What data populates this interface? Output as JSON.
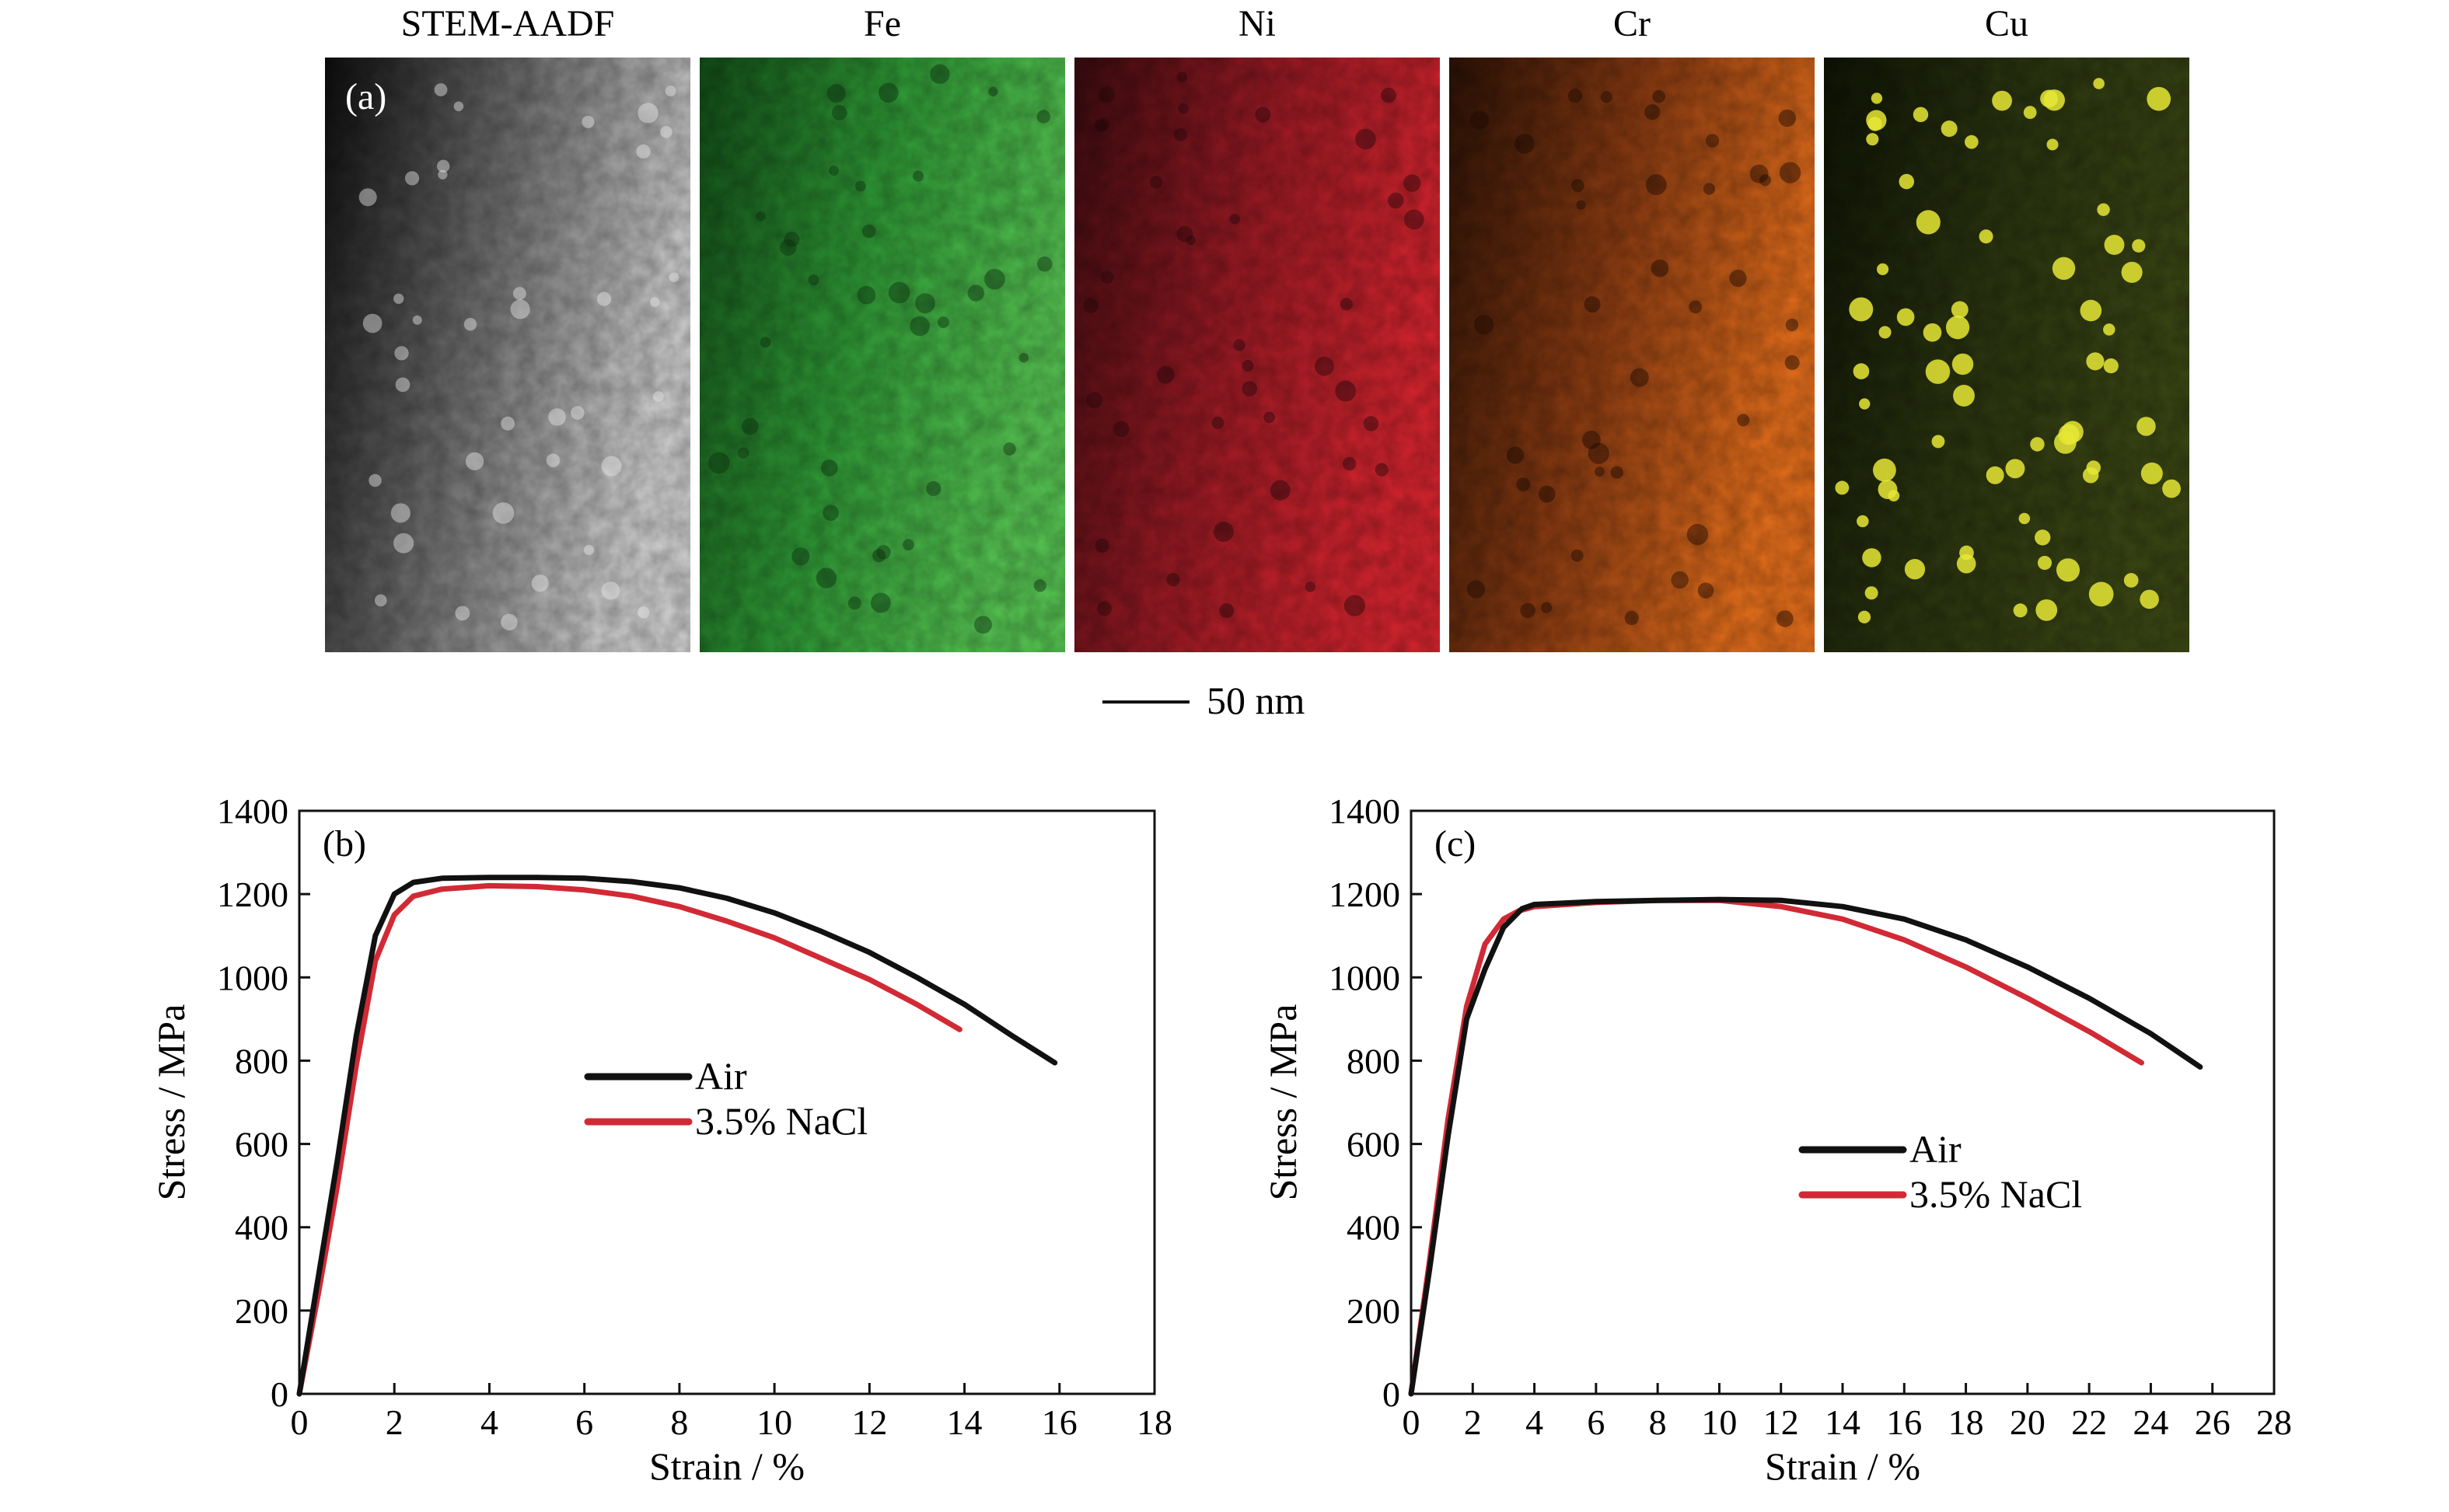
{
  "maps": [
    {
      "label": "STEM-AADF",
      "colors": [
        "#0c0c0c",
        "#6f6f6f",
        "#d2d2d2"
      ],
      "dot": "#e8e8e8"
    },
    {
      "label": "Fe",
      "colors": [
        "#134d18",
        "#2f9a36",
        "#57c653"
      ],
      "dot": "#0d2e0f"
    },
    {
      "label": "Ni",
      "colors": [
        "#3b0c10",
        "#9a1a24",
        "#d8252f"
      ],
      "dot": "#24060a"
    },
    {
      "label": "Cr",
      "colors": [
        "#2c1206",
        "#8c3c12",
        "#e8701c"
      ],
      "dot": "#1a0903"
    },
    {
      "label": "Cu",
      "colors": [
        "#0f1405",
        "#2b3510",
        "#3b4714"
      ],
      "dot": "#e6e835"
    }
  ],
  "panel_a_letter": "(a)",
  "scale_bar_label": "50 nm",
  "chart_data": [
    {
      "panel": "(b)",
      "type": "line",
      "xlabel": "Strain / %",
      "ylabel": "Stress / MPa",
      "xlim": [
        0,
        18
      ],
      "ylim": [
        0,
        1400
      ],
      "xticks": [
        "0",
        "2",
        "4",
        "6",
        "8",
        "10",
        "12",
        "14",
        "16",
        "18"
      ],
      "yticks": [
        "0",
        "200",
        "400",
        "600",
        "800",
        "1000",
        "1200",
        "1400"
      ],
      "legend_position": "center",
      "series": [
        {
          "name": "Air",
          "color": "#111111",
          "x": [
            0,
            0.4,
            0.8,
            1.2,
            1.6,
            2.0,
            2.4,
            3.0,
            4.0,
            5.0,
            6.0,
            7.0,
            8.0,
            9.0,
            10.0,
            11.0,
            12.0,
            13.0,
            14.0,
            15.0,
            15.9
          ],
          "y": [
            0,
            280,
            560,
            860,
            1100,
            1200,
            1228,
            1238,
            1240,
            1240,
            1238,
            1230,
            1215,
            1190,
            1155,
            1110,
            1060,
            1000,
            935,
            860,
            795
          ]
        },
        {
          "name": "3.5% NaCl",
          "color": "#d12a35",
          "x": [
            0,
            0.4,
            0.8,
            1.2,
            1.6,
            2.0,
            2.4,
            3.0,
            4.0,
            5.0,
            6.0,
            7.0,
            8.0,
            9.0,
            10.0,
            11.0,
            12.0,
            13.0,
            13.9
          ],
          "y": [
            0,
            240,
            500,
            790,
            1040,
            1150,
            1195,
            1212,
            1220,
            1218,
            1210,
            1195,
            1170,
            1135,
            1095,
            1045,
            995,
            935,
            875
          ]
        }
      ]
    },
    {
      "panel": "(c)",
      "type": "line",
      "xlabel": "Strain / %",
      "ylabel": "Stress / MPa",
      "xlim": [
        0,
        28
      ],
      "ylim": [
        0,
        1400
      ],
      "xticks": [
        "0",
        "2",
        "4",
        "6",
        "8",
        "10",
        "12",
        "14",
        "16",
        "18",
        "20",
        "22",
        "24",
        "26",
        "28"
      ],
      "yticks": [
        "0",
        "200",
        "400",
        "600",
        "800",
        "1000",
        "1200",
        "1400"
      ],
      "legend_position": "center-right",
      "series": [
        {
          "name": "Air",
          "color": "#111111",
          "x": [
            0,
            0.6,
            1.2,
            1.8,
            2.4,
            3.0,
            3.6,
            4.0,
            6.0,
            8.0,
            10.0,
            12.0,
            14.0,
            16.0,
            18.0,
            20.0,
            22.0,
            24.0,
            25.6
          ],
          "y": [
            0,
            300,
            620,
            900,
            1020,
            1120,
            1165,
            1175,
            1182,
            1185,
            1187,
            1185,
            1170,
            1140,
            1090,
            1025,
            950,
            865,
            785
          ]
        },
        {
          "name": "3.5% NaCl",
          "color": "#d12a35",
          "x": [
            0,
            0.6,
            1.2,
            1.8,
            2.4,
            3.0,
            3.5,
            4.0,
            6.0,
            8.0,
            10.0,
            12.0,
            14.0,
            16.0,
            18.0,
            20.0,
            22.0,
            23.7
          ],
          "y": [
            0,
            320,
            660,
            930,
            1080,
            1140,
            1160,
            1170,
            1180,
            1185,
            1185,
            1170,
            1140,
            1090,
            1025,
            950,
            870,
            795
          ]
        }
      ]
    }
  ]
}
